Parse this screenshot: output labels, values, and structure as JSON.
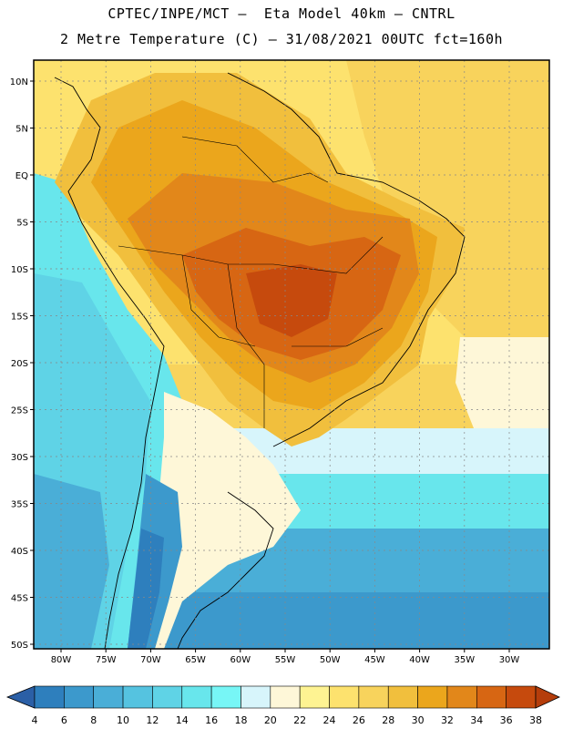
{
  "title_line1": "CPTEC/INPE/MCT –  Eta Model 40km – CNTRL",
  "title_line2": "2 Metre Temperature (C) – 31/08/2021 00UTC fct=160h",
  "lat_labels": [
    "10N",
    "5N",
    "EQ",
    "5S",
    "10S",
    "15S",
    "20S",
    "25S",
    "30S",
    "35S",
    "40S",
    "45S",
    "50S"
  ],
  "lon_labels": [
    "80W",
    "75W",
    "70W",
    "65W",
    "60W",
    "55W",
    "50W",
    "45W",
    "40W",
    "35W",
    "30W"
  ],
  "colorbar": {
    "labels": [
      "4",
      "6",
      "8",
      "10",
      "12",
      "14",
      "16",
      "18",
      "20",
      "22",
      "24",
      "26",
      "28",
      "30",
      "32",
      "34",
      "36",
      "38"
    ],
    "colors": [
      "#2b5fa6",
      "#2e7fbd",
      "#3c99cc",
      "#4aaed7",
      "#55c3e0",
      "#5fd3e6",
      "#68e6ec",
      "#77f6f6",
      "#d7f5fb",
      "#fef7d8",
      "#fef392",
      "#fde26e",
      "#f8d35c",
      "#f1bf3d",
      "#eba61c",
      "#e2871a",
      "#d76613",
      "#c64a0d",
      "#b53d0b"
    ]
  }
}
